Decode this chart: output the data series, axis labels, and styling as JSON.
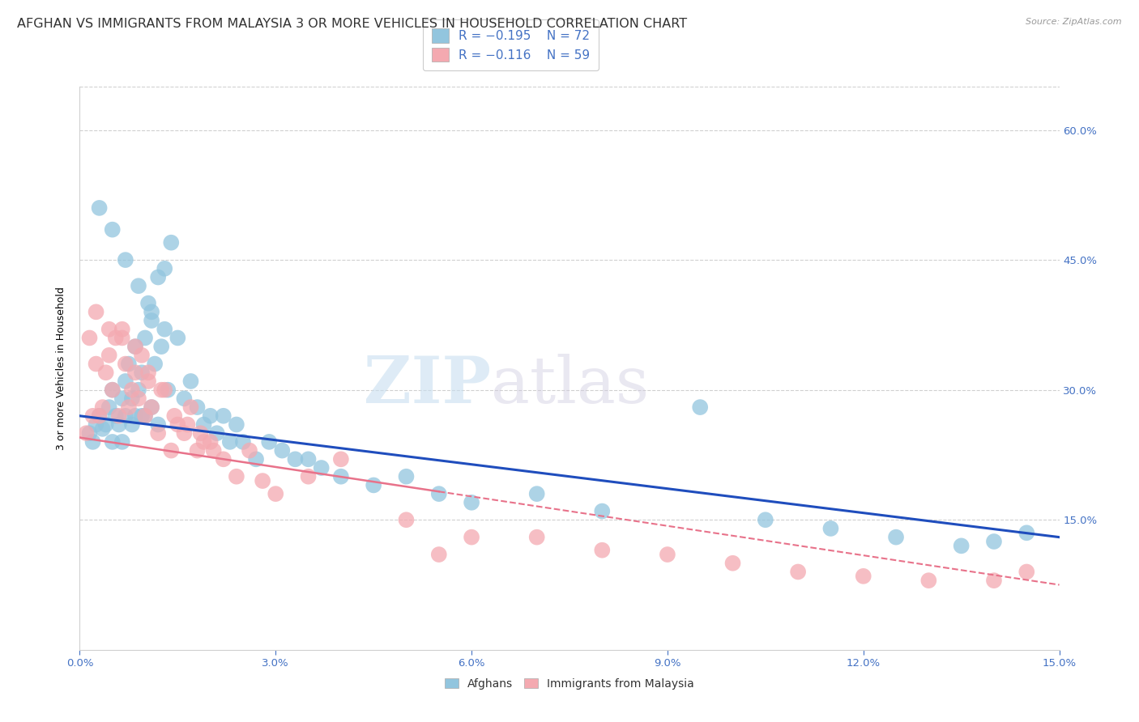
{
  "title": "AFGHAN VS IMMIGRANTS FROM MALAYSIA 3 OR MORE VEHICLES IN HOUSEHOLD CORRELATION CHART",
  "source": "Source: ZipAtlas.com",
  "ylabel": "3 or more Vehicles in Household",
  "xlim": [
    0.0,
    15.0
  ],
  "ylim": [
    0.0,
    65.0
  ],
  "legend_labels": [
    "Afghans",
    "Immigrants from Malaysia"
  ],
  "afghan_R": "-0.195",
  "afghan_N": "72",
  "malaysia_R": "-0.116",
  "malaysia_N": "59",
  "afghan_color": "#92c5de",
  "malaysia_color": "#f4a9b0",
  "afghan_line_color": "#1f4dbd",
  "malaysia_line_color": "#e8728a",
  "watermark_zip": "ZIP",
  "watermark_atlas": "atlas",
  "title_fontsize": 11.5,
  "axis_label_fontsize": 9,
  "tick_fontsize": 9.5,
  "afghan_scatter_x": [
    0.15,
    0.2,
    0.25,
    0.3,
    0.35,
    0.4,
    0.45,
    0.5,
    0.5,
    0.55,
    0.6,
    0.65,
    0.65,
    0.7,
    0.7,
    0.75,
    0.8,
    0.8,
    0.85,
    0.85,
    0.9,
    0.95,
    0.95,
    1.0,
    1.0,
    1.05,
    1.1,
    1.1,
    1.15,
    1.2,
    1.2,
    1.25,
    1.3,
    1.35,
    1.4,
    1.5,
    1.6,
    1.7,
    1.8,
    1.9,
    2.0,
    2.1,
    2.2,
    2.3,
    2.4,
    2.5,
    2.7,
    2.9,
    3.1,
    3.3,
    3.5,
    3.7,
    4.0,
    4.5,
    5.0,
    5.5,
    6.0,
    7.0,
    8.0,
    9.5,
    10.5,
    11.5,
    12.5,
    13.5,
    14.0,
    14.5,
    0.3,
    0.5,
    0.7,
    0.9,
    1.1,
    1.3
  ],
  "afghan_scatter_y": [
    25.0,
    24.0,
    26.0,
    27.0,
    25.5,
    26.0,
    28.0,
    30.0,
    24.0,
    27.0,
    26.0,
    29.0,
    24.0,
    31.0,
    27.0,
    33.0,
    29.0,
    26.0,
    35.0,
    27.0,
    30.0,
    32.0,
    27.0,
    36.0,
    27.0,
    40.0,
    38.0,
    28.0,
    33.0,
    43.0,
    26.0,
    35.0,
    44.0,
    30.0,
    47.0,
    36.0,
    29.0,
    31.0,
    28.0,
    26.0,
    27.0,
    25.0,
    27.0,
    24.0,
    26.0,
    24.0,
    22.0,
    24.0,
    23.0,
    22.0,
    22.0,
    21.0,
    20.0,
    19.0,
    20.0,
    18.0,
    17.0,
    18.0,
    16.0,
    28.0,
    15.0,
    14.0,
    13.0,
    12.0,
    12.5,
    13.5,
    51.0,
    48.5,
    45.0,
    42.0,
    39.0,
    37.0
  ],
  "malaysia_scatter_x": [
    0.1,
    0.15,
    0.2,
    0.25,
    0.3,
    0.35,
    0.4,
    0.45,
    0.5,
    0.55,
    0.6,
    0.65,
    0.7,
    0.75,
    0.8,
    0.85,
    0.9,
    0.95,
    1.0,
    1.05,
    1.1,
    1.2,
    1.3,
    1.4,
    1.5,
    1.6,
    1.7,
    1.8,
    1.9,
    2.0,
    2.2,
    2.4,
    2.6,
    2.8,
    3.0,
    3.5,
    4.0,
    5.0,
    5.5,
    6.0,
    7.0,
    8.0,
    9.0,
    10.0,
    11.0,
    12.0,
    13.0,
    14.0,
    14.5,
    0.25,
    0.45,
    0.65,
    0.85,
    1.05,
    1.25,
    1.45,
    1.65,
    1.85,
    2.05
  ],
  "malaysia_scatter_y": [
    25.0,
    36.0,
    27.0,
    33.0,
    27.0,
    28.0,
    32.0,
    34.0,
    30.0,
    36.0,
    27.0,
    37.0,
    33.0,
    28.0,
    30.0,
    32.0,
    29.0,
    34.0,
    27.0,
    31.0,
    28.0,
    25.0,
    30.0,
    23.0,
    26.0,
    25.0,
    28.0,
    23.0,
    24.0,
    24.0,
    22.0,
    20.0,
    23.0,
    19.5,
    18.0,
    20.0,
    22.0,
    15.0,
    11.0,
    13.0,
    13.0,
    11.5,
    11.0,
    10.0,
    9.0,
    8.5,
    8.0,
    8.0,
    9.0,
    39.0,
    37.0,
    36.0,
    35.0,
    32.0,
    30.0,
    27.0,
    26.0,
    25.0,
    23.0
  ]
}
